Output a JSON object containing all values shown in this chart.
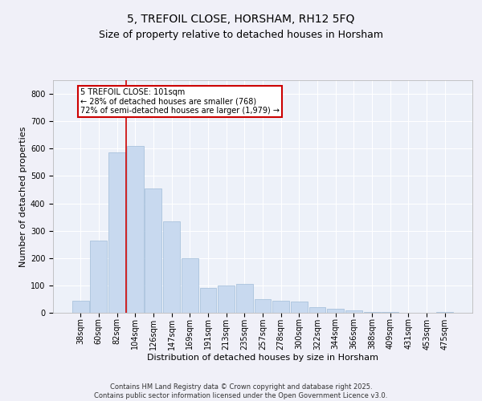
{
  "title": "5, TREFOIL CLOSE, HORSHAM, RH12 5FQ",
  "subtitle": "Size of property relative to detached houses in Horsham",
  "xlabel": "Distribution of detached houses by size in Horsham",
  "ylabel": "Number of detached properties",
  "categories": [
    "38sqm",
    "60sqm",
    "82sqm",
    "104sqm",
    "126sqm",
    "147sqm",
    "169sqm",
    "191sqm",
    "213sqm",
    "235sqm",
    "257sqm",
    "278sqm",
    "300sqm",
    "322sqm",
    "344sqm",
    "366sqm",
    "388sqm",
    "409sqm",
    "431sqm",
    "453sqm",
    "475sqm"
  ],
  "values": [
    45,
    265,
    585,
    610,
    455,
    335,
    200,
    90,
    100,
    105,
    50,
    45,
    40,
    20,
    15,
    10,
    2,
    2,
    1,
    1,
    2
  ],
  "bar_color": "#c8d9ef",
  "bar_edge_color": "#a0bcd8",
  "bg_color": "#edf1f9",
  "grid_color": "#ffffff",
  "annotation_line1": "5 TREFOIL CLOSE: 101sqm",
  "annotation_line2": "← 28% of detached houses are smaller (768)",
  "annotation_line3": "72% of semi-detached houses are larger (1,979) →",
  "annotation_box_color": "#cc0000",
  "redline_bar_index": 3,
  "redline_color": "#cc0000",
  "ylim": [
    0,
    850
  ],
  "yticks": [
    0,
    100,
    200,
    300,
    400,
    500,
    600,
    700,
    800
  ],
  "footer_text": "Contains HM Land Registry data © Crown copyright and database right 2025.\nContains public sector information licensed under the Open Government Licence v3.0.",
  "title_fontsize": 10,
  "subtitle_fontsize": 9,
  "axis_label_fontsize": 8,
  "tick_fontsize": 7,
  "annotation_fontsize": 7,
  "footer_fontsize": 6
}
